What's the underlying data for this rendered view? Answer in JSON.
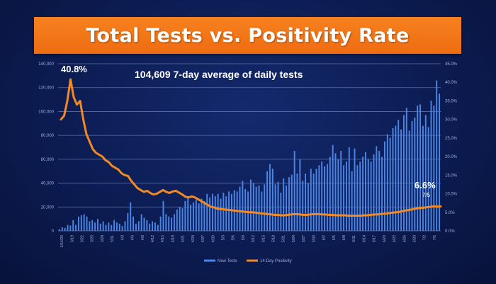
{
  "title": "Total Tests vs. Positivity Rate",
  "colors": {
    "bars": "#4a86e8",
    "line": "#f28a24",
    "banner": "#f47a1c",
    "grid": "#5b6fa8"
  },
  "chart_data": {
    "type": "bar",
    "annotation": "104,609 7-day average of daily tests",
    "peak_label": "40.8%",
    "end_label": "6.6%",
    "end_date": "7/5",
    "left_axis": {
      "ylim": [
        0,
        140000
      ],
      "ticks": [
        "0",
        "20,000",
        "40,000",
        "60,000",
        "80,000",
        "100,000",
        "120,000",
        "140,000"
      ],
      "tick_values": [
        0,
        20000,
        40000,
        60000,
        80000,
        100000,
        120000,
        140000
      ]
    },
    "right_axis": {
      "ylim": [
        0,
        45
      ],
      "ticks": [
        "0.0%",
        "5.0%",
        "10.0%",
        "15.0%",
        "20.0%",
        "25.0%",
        "30.0%",
        "35.0%",
        "40.0%",
        "45.0%"
      ],
      "tick_values": [
        0,
        5,
        10,
        15,
        20,
        25,
        30,
        35,
        40,
        45
      ]
    },
    "x_ticks": [
      "3/16/20",
      "3/19",
      "3/22",
      "3/25",
      "3/28",
      "3/31",
      "4/3",
      "4/6",
      "4/9",
      "4/12",
      "4/15",
      "4/18",
      "4/21",
      "4/24",
      "4/27",
      "4/30",
      "5/3",
      "5/6",
      "5/9",
      "5/12",
      "5/15",
      "5/18",
      "5/21",
      "5/24",
      "5/27",
      "5/30",
      "6/2",
      "6/5",
      "6/8",
      "6/11",
      "6/14",
      "6/17",
      "6/20",
      "6/23",
      "6/26",
      "6/29",
      "7/2",
      "7/5"
    ],
    "legend": [
      "New Tests",
      "14-Day Positivity"
    ],
    "series": [
      {
        "name": "New Tests",
        "type": "bar",
        "values": [
          1500,
          3000,
          2500,
          5000,
          4500,
          9000,
          5000,
          12000,
          13000,
          14000,
          12000,
          8000,
          9000,
          7000,
          10000,
          6000,
          8000,
          5000,
          7000,
          5000,
          9000,
          7000,
          6000,
          4000,
          8000,
          15000,
          24000,
          12000,
          6000,
          8000,
          14000,
          11000,
          9000,
          6000,
          8000,
          7000,
          5000,
          12000,
          25000,
          14000,
          12000,
          11000,
          14000,
          18000,
          20000,
          19000,
          25000,
          28000,
          22000,
          24000,
          26000,
          23000,
          27000,
          25000,
          31000,
          28000,
          31000,
          29000,
          31000,
          27000,
          32000,
          29000,
          33000,
          31000,
          34000,
          33000,
          37000,
          42000,
          35000,
          33000,
          43000,
          40000,
          37000,
          38000,
          33000,
          39000,
          50000,
          56000,
          52000,
          39000,
          41000,
          32000,
          44000,
          38000,
          45000,
          47000,
          67000,
          48000,
          60000,
          42000,
          48000,
          40000,
          52000,
          48000,
          52000,
          55000,
          58000,
          54000,
          56000,
          62000,
          72000,
          65000,
          60000,
          67000,
          55000,
          58000,
          70000,
          50000,
          69000,
          55000,
          58000,
          62000,
          66000,
          60000,
          58000,
          64000,
          71000,
          67000,
          62000,
          75000,
          81000,
          78000,
          86000,
          88000,
          93000,
          85000,
          97000,
          103000,
          84000,
          92000,
          95000,
          105000,
          106000,
          88000,
          97000,
          87000,
          109000,
          105000,
          126000,
          115000
        ],
        "bar_count": 140
      },
      {
        "name": "14-Day Positivity",
        "type": "line",
        "values": [
          30,
          31,
          35,
          40.8,
          36,
          34,
          35,
          30,
          26,
          24,
          22,
          21,
          20.5,
          20,
          19,
          18.5,
          17.5,
          17,
          16.5,
          15.5,
          15,
          14.8,
          13.5,
          12.5,
          11.5,
          11,
          10.5,
          10.8,
          10.2,
          9.8,
          10,
          10.5,
          11,
          10.5,
          10.2,
          10.6,
          10.8,
          10.3,
          9.8,
          9.2,
          9,
          9.3,
          9,
          8.5,
          8,
          7.5,
          7,
          6.5,
          6.3,
          6,
          5.9,
          5.8,
          5.7,
          5.6,
          5.5,
          5.4,
          5.3,
          5.2,
          5.1,
          5,
          5,
          4.9,
          4.8,
          4.7,
          4.6,
          4.5,
          4.4,
          4.3,
          4.3,
          4.2,
          4.2,
          4.3,
          4.4,
          4.5,
          4.5,
          4.4,
          4.3,
          4.3,
          4.4,
          4.5,
          4.5,
          4.5,
          4.4,
          4.4,
          4.3,
          4.3,
          4.2,
          4.2,
          4.2,
          4.2,
          4.1,
          4.1,
          4.1,
          4.1,
          4.1,
          4.2,
          4.2,
          4.3,
          4.4,
          4.4,
          4.5,
          4.6,
          4.7,
          4.8,
          4.9,
          5,
          5.1,
          5.3,
          5.5,
          5.6,
          5.8,
          6,
          6.1,
          6.2,
          6.3,
          6.4,
          6.5,
          6.6,
          6.5,
          6.6
        ]
      }
    ],
    "grid": true,
    "legend_position": "bottom"
  }
}
